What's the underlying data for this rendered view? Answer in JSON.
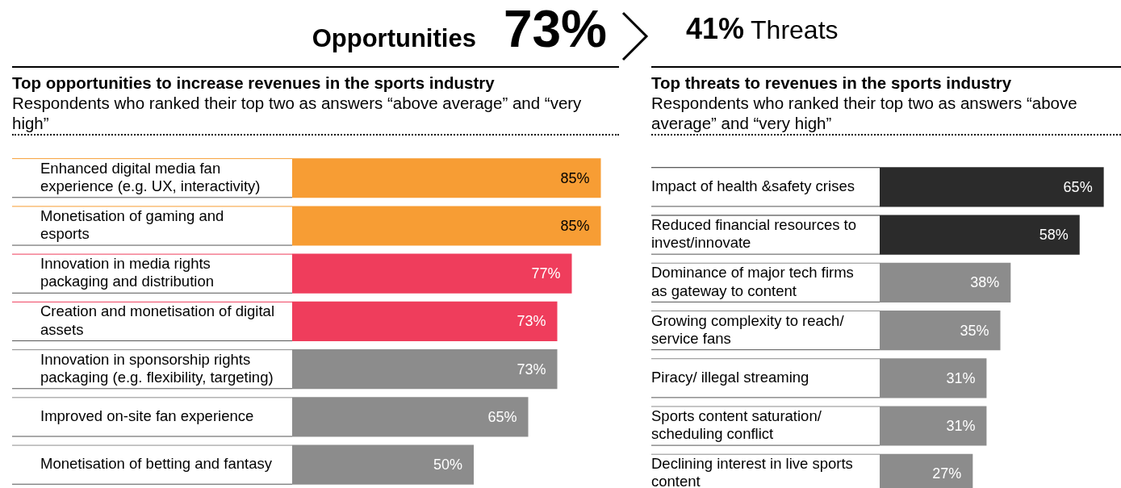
{
  "chart_data": [
    {
      "type": "bar",
      "orientation": "horizontal",
      "title": "Top opportunities to increase revenues in the sports industry",
      "subtitle": "Respondents who ranked their top two as answers “above average” and “very high”",
      "annotations": [
        "Opportunities",
        "73%"
      ],
      "categories": [
        "Enhanced digital media fan experience (e.g. UX, interactivity)",
        "Monetisation of gaming and esports",
        "Innovation in media rights packaging and distribution",
        "Creation and monetisation of digital assets",
        "Innovation in sponsorship rights packaging (e.g. flexibility, targeting)",
        "Improved on-site fan experience",
        "Monetisation of betting and fantasy"
      ],
      "values": [
        85,
        85,
        77,
        73,
        73,
        65,
        50
      ],
      "colors": [
        "#f79d34",
        "#f79d34",
        "#ef3d5c",
        "#ef3d5c",
        "#8c8c8c",
        "#8c8c8c",
        "#8c8c8c"
      ],
      "value_labels": [
        "85%",
        "85%",
        "77%",
        "73%",
        "73%",
        "65%",
        "50%"
      ],
      "tick_labels": "y",
      "grid": false,
      "legend": false
    },
    {
      "type": "bar",
      "orientation": "horizontal",
      "title": "Top threats to revenues in the sports industry",
      "subtitle": "Respondents who ranked their top two as answers “above average” and “very high”",
      "annotations": [
        "41%",
        "Threats"
      ],
      "categories": [
        "Impact of health &safety crises",
        "Reduced financial resources to invest/innovate",
        "Dominance of major tech firms as gateway to content",
        "Growing complexity to reach/ service fans",
        "Piracy/ illegal streaming",
        "Sports content saturation/ scheduling conflict",
        "Declining interest in live sports content"
      ],
      "values": [
        65,
        58,
        38,
        35,
        31,
        31,
        27
      ],
      "colors": [
        "#2b2b2b",
        "#2b2b2b",
        "#8c8c8c",
        "#8c8c8c",
        "#8c8c8c",
        "#8c8c8c",
        "#8c8c8c"
      ],
      "value_labels": [
        "65%",
        "58%",
        "38%",
        "35%",
        "31%",
        "31%",
        "27%"
      ],
      "tick_labels": "y",
      "grid": false,
      "legend": false
    }
  ]
}
